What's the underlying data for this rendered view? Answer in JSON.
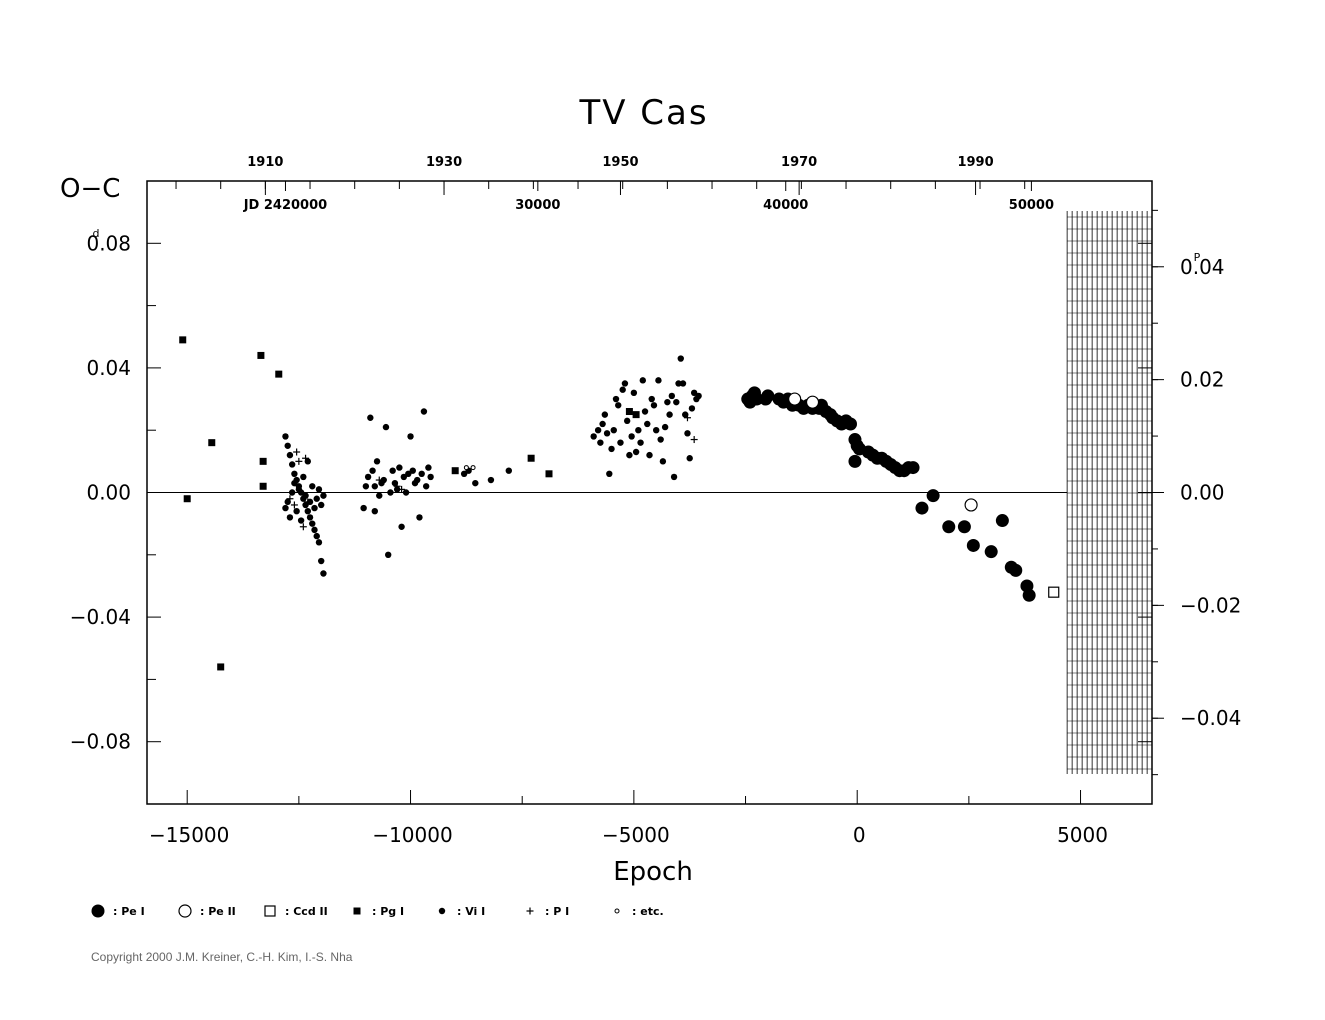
{
  "chart_data": {
    "type": "scatter",
    "title": "TV  Cas",
    "xlabel": "Epoch",
    "ylabel": "O−C",
    "y_unit": "d",
    "y2_unit": "P",
    "xlim": [
      -15900,
      6600
    ],
    "ylim": [
      -0.1,
      0.1
    ],
    "y2lim": [
      -0.0552,
      0.0552
    ],
    "x_ticks": [
      -15000,
      -10000,
      -5000,
      0,
      5000
    ],
    "x_tick_labels": [
      "−15000",
      "−10000",
      "−5000",
      "0",
      "5000"
    ],
    "y_ticks": [
      -0.08,
      -0.04,
      0.0,
      0.04,
      0.08
    ],
    "y_tick_labels": [
      "−0.08",
      "−0.04",
      "0.00",
      "0.04",
      "0.08"
    ],
    "y2_ticks": [
      -0.04,
      -0.02,
      0.0,
      0.02,
      0.04
    ],
    "y2_tick_labels": [
      "−0.04",
      "−0.02",
      "0.00",
      "0.02",
      "0.04"
    ],
    "year_ticks": [
      {
        "label": "1910",
        "epoch": -13250
      },
      {
        "label": "1930",
        "epoch": -9250
      },
      {
        "label": "1950",
        "epoch": -5300
      },
      {
        "label": "1970",
        "epoch": -1300
      },
      {
        "label": "1990",
        "epoch": 2650
      }
    ],
    "jd_labels": [
      {
        "label": "JD  2420000",
        "epoch": -12800
      },
      {
        "label": "30000",
        "epoch": -7150
      },
      {
        "label": "40000",
        "epoch": -1600
      },
      {
        "label": "50000",
        "epoch": 3900
      }
    ],
    "grid": false,
    "zero_line": true,
    "hatched_region_x_start": 4700,
    "series": [
      {
        "name": "Pe I",
        "symbol": "large-filled-circle",
        "points": [
          [
            -2450,
            0.03
          ],
          [
            -2400,
            0.029
          ],
          [
            -2350,
            0.031
          ],
          [
            -2300,
            0.032
          ],
          [
            -2250,
            0.03
          ],
          [
            -2050,
            0.03
          ],
          [
            -2000,
            0.031
          ],
          [
            -1750,
            0.03
          ],
          [
            -1650,
            0.029
          ],
          [
            -1550,
            0.03
          ],
          [
            -1450,
            0.028
          ],
          [
            -1400,
            0.029
          ],
          [
            -1300,
            0.028
          ],
          [
            -1200,
            0.027
          ],
          [
            -1100,
            0.028
          ],
          [
            -1000,
            0.027
          ],
          [
            -950,
            0.028
          ],
          [
            -850,
            0.027
          ],
          [
            -800,
            0.028
          ],
          [
            -700,
            0.026
          ],
          [
            -600,
            0.025
          ],
          [
            -550,
            0.024
          ],
          [
            -450,
            0.023
          ],
          [
            -350,
            0.022
          ],
          [
            -250,
            0.023
          ],
          [
            -150,
            0.022
          ],
          [
            -50,
            0.017
          ],
          [
            0,
            0.015
          ],
          [
            50,
            0.014
          ],
          [
            -50,
            0.01
          ],
          [
            250,
            0.013
          ],
          [
            350,
            0.012
          ],
          [
            450,
            0.011
          ],
          [
            550,
            0.011
          ],
          [
            650,
            0.01
          ],
          [
            750,
            0.009
          ],
          [
            850,
            0.008
          ],
          [
            950,
            0.007
          ],
          [
            1050,
            0.007
          ],
          [
            1150,
            0.008
          ],
          [
            1250,
            0.008
          ],
          [
            1450,
            -0.005
          ],
          [
            1700,
            -0.001
          ],
          [
            2050,
            -0.011
          ],
          [
            2400,
            -0.011
          ],
          [
            2600,
            -0.017
          ],
          [
            3000,
            -0.019
          ],
          [
            3250,
            -0.009
          ],
          [
            3450,
            -0.024
          ],
          [
            3550,
            -0.025
          ],
          [
            3800,
            -0.03
          ],
          [
            3850,
            -0.033
          ]
        ]
      },
      {
        "name": "Pe II",
        "symbol": "large-open-circle",
        "points": [
          [
            -1400,
            0.03
          ],
          [
            -1000,
            0.029
          ],
          [
            2550,
            -0.004
          ]
        ]
      },
      {
        "name": "Ccd II",
        "symbol": "open-square",
        "points": [
          [
            4400,
            -0.032
          ]
        ]
      },
      {
        "name": "Pg I",
        "symbol": "filled-square",
        "points": [
          [
            -15100,
            0.049
          ],
          [
            -15000,
            -0.002
          ],
          [
            -14450,
            0.016
          ],
          [
            -14250,
            -0.056
          ],
          [
            -13350,
            0.044
          ],
          [
            -13300,
            0.01
          ],
          [
            -13300,
            0.002
          ],
          [
            -12950,
            0.038
          ],
          [
            -9000,
            0.007
          ],
          [
            -7300,
            0.011
          ],
          [
            -6900,
            0.006
          ],
          [
            -5100,
            0.026
          ],
          [
            -4950,
            0.025
          ]
        ]
      },
      {
        "name": "Vi I",
        "symbol": "small-filled-circle",
        "points": [
          [
            -12800,
            0.018
          ],
          [
            -12750,
            0.015
          ],
          [
            -12700,
            0.012
          ],
          [
            -12650,
            0.009
          ],
          [
            -12600,
            0.006
          ],
          [
            -12550,
            0.004
          ],
          [
            -12500,
            0.002
          ],
          [
            -12450,
            0.0
          ],
          [
            -12400,
            -0.002
          ],
          [
            -12350,
            -0.004
          ],
          [
            -12300,
            -0.006
          ],
          [
            -12250,
            -0.008
          ],
          [
            -12200,
            -0.01
          ],
          [
            -12150,
            -0.012
          ],
          [
            -12100,
            -0.014
          ],
          [
            -12050,
            -0.016
          ],
          [
            -12000,
            -0.022
          ],
          [
            -11950,
            -0.026
          ],
          [
            -12800,
            -0.005
          ],
          [
            -12750,
            -0.003
          ],
          [
            -12700,
            -0.008
          ],
          [
            -12650,
            0.0
          ],
          [
            -12600,
            0.003
          ],
          [
            -12550,
            -0.006
          ],
          [
            -12500,
            0.001
          ],
          [
            -12450,
            -0.009
          ],
          [
            -12400,
            0.005
          ],
          [
            -12350,
            -0.001
          ],
          [
            -12300,
            0.01
          ],
          [
            -12250,
            -0.003
          ],
          [
            -12200,
            0.002
          ],
          [
            -12150,
            -0.005
          ],
          [
            -12100,
            -0.002
          ],
          [
            -12050,
            0.001
          ],
          [
            -12000,
            -0.004
          ],
          [
            -11950,
            -0.001
          ],
          [
            -11000,
            0.002
          ],
          [
            -10950,
            0.005
          ],
          [
            -10900,
            0.024
          ],
          [
            -10850,
            0.007
          ],
          [
            -10800,
            0.002
          ],
          [
            -10750,
            0.01
          ],
          [
            -10700,
            -0.001
          ],
          [
            -10650,
            0.003
          ],
          [
            -10600,
            0.004
          ],
          [
            -10550,
            0.021
          ],
          [
            -10500,
            -0.02
          ],
          [
            -10450,
            0.0
          ],
          [
            -10400,
            0.007
          ],
          [
            -10350,
            0.003
          ],
          [
            -10300,
            0.001
          ],
          [
            -10250,
            0.008
          ],
          [
            -10200,
            -0.011
          ],
          [
            -10150,
            0.005
          ],
          [
            -10100,
            0.0
          ],
          [
            -10050,
            0.006
          ],
          [
            -10000,
            0.018
          ],
          [
            -9950,
            0.007
          ],
          [
            -9900,
            0.003
          ],
          [
            -9850,
            0.004
          ],
          [
            -9800,
            -0.008
          ],
          [
            -9750,
            0.006
          ],
          [
            -9700,
            0.026
          ],
          [
            -9650,
            0.002
          ],
          [
            -9600,
            0.008
          ],
          [
            -9550,
            0.005
          ],
          [
            -8800,
            0.006
          ],
          [
            -8700,
            0.007
          ],
          [
            -8550,
            0.003
          ],
          [
            -8200,
            0.004
          ],
          [
            -7800,
            0.007
          ],
          [
            -11050,
            -0.005
          ],
          [
            -10800,
            -0.006
          ],
          [
            -5900,
            0.018
          ],
          [
            -5800,
            0.02
          ],
          [
            -5750,
            0.016
          ],
          [
            -5700,
            0.022
          ],
          [
            -5650,
            0.025
          ],
          [
            -5600,
            0.019
          ],
          [
            -5550,
            0.006
          ],
          [
            -5500,
            0.014
          ],
          [
            -5450,
            0.02
          ],
          [
            -5400,
            0.03
          ],
          [
            -5350,
            0.028
          ],
          [
            -5300,
            0.016
          ],
          [
            -5250,
            0.033
          ],
          [
            -5200,
            0.035
          ],
          [
            -5150,
            0.023
          ],
          [
            -5100,
            0.012
          ],
          [
            -5050,
            0.018
          ],
          [
            -5000,
            0.032
          ],
          [
            -4950,
            0.013
          ],
          [
            -4900,
            0.02
          ],
          [
            -4850,
            0.016
          ],
          [
            -4800,
            0.036
          ],
          [
            -4750,
            0.026
          ],
          [
            -4700,
            0.022
          ],
          [
            -4650,
            0.012
          ],
          [
            -4600,
            0.03
          ],
          [
            -4550,
            0.028
          ],
          [
            -4500,
            0.02
          ],
          [
            -4450,
            0.036
          ],
          [
            -4400,
            0.017
          ],
          [
            -4350,
            0.01
          ],
          [
            -4300,
            0.021
          ],
          [
            -4250,
            0.029
          ],
          [
            -4200,
            0.025
          ],
          [
            -4150,
            0.031
          ],
          [
            -4100,
            0.005
          ],
          [
            -4050,
            0.029
          ],
          [
            -4000,
            0.035
          ],
          [
            -3950,
            0.043
          ],
          [
            -3900,
            0.035
          ],
          [
            -3850,
            0.025
          ],
          [
            -3800,
            0.019
          ],
          [
            -3750,
            0.011
          ],
          [
            -3700,
            0.027
          ],
          [
            -3650,
            0.032
          ],
          [
            -3600,
            0.03
          ],
          [
            -3550,
            0.031
          ]
        ]
      },
      {
        "name": "P I",
        "symbol": "plus",
        "points": [
          [
            -12550,
            0.013
          ],
          [
            -12500,
            0.01
          ],
          [
            -12600,
            -0.004
          ],
          [
            -12400,
            -0.011
          ],
          [
            -12350,
            0.011
          ],
          [
            -12700,
            -0.002
          ],
          [
            -12300,
            -0.003
          ],
          [
            -10700,
            0.004
          ],
          [
            -10300,
            0.002
          ],
          [
            -10200,
            0.001
          ],
          [
            -3650,
            0.017
          ],
          [
            -3800,
            0.024
          ]
        ]
      },
      {
        "name": "etc.",
        "symbol": "tiny-circle",
        "points": [
          [
            -8750,
            0.008
          ],
          [
            -8600,
            0.008
          ]
        ]
      }
    ],
    "legend": [
      {
        "symbol": "large-filled-circle",
        "label": ": Pe I"
      },
      {
        "symbol": "large-open-circle",
        "label": ": Pe II"
      },
      {
        "symbol": "open-square",
        "label": ": Ccd II"
      },
      {
        "symbol": "filled-square",
        "label": ": Pg I"
      },
      {
        "symbol": "small-filled-circle",
        "label": ": Vi I"
      },
      {
        "symbol": "plus",
        "label": ": P I"
      },
      {
        "symbol": "tiny-circle",
        "label": ": etc."
      }
    ],
    "legend_position": "bottom-left"
  },
  "copyright": "Copyright 2000 J.M. Kreiner, C.-H. Kim, I.-S. Nha"
}
